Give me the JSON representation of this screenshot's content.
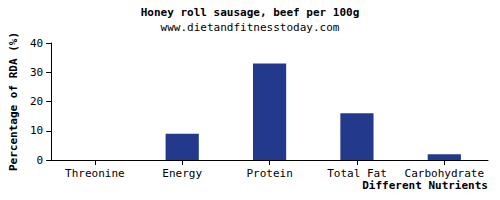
{
  "chart_data": {
    "type": "bar",
    "title": "Honey roll sausage, beef per 100g",
    "subtitle": "www.dietandfitnesstoday.com",
    "x_label": "Different Nutrients",
    "y_label": "Percentage of RDA (%)",
    "categories": [
      "Threonine",
      "Energy",
      "Protein",
      "Total Fat",
      "Carbohydrate"
    ],
    "values": [
      0,
      9,
      33,
      16,
      2
    ],
    "color": "#233a8c",
    "ylim": [
      0,
      40
    ],
    "yticks": [
      0,
      10,
      20,
      30,
      40
    ],
    "grid": false
  }
}
